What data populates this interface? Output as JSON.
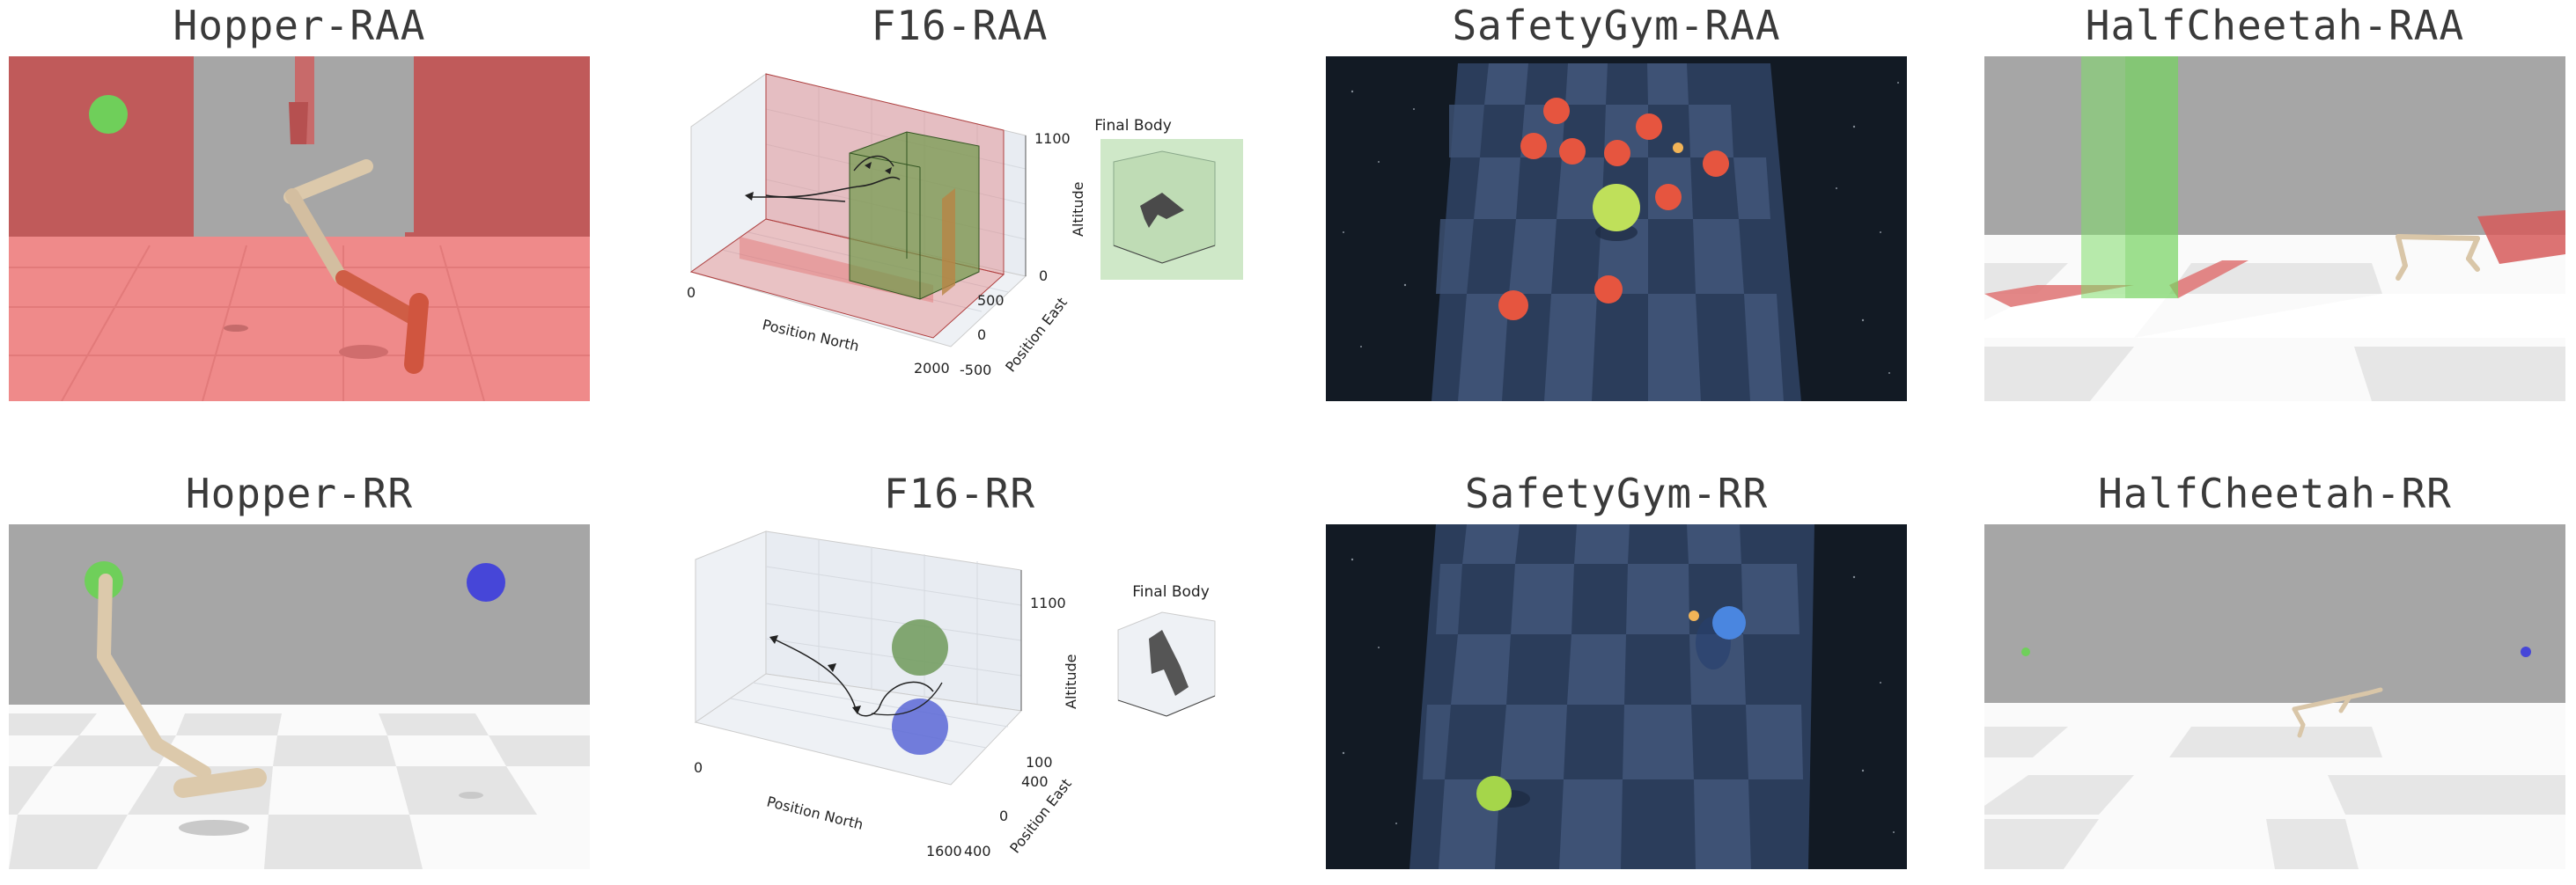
{
  "panels": [
    {
      "id": "hopper-raa",
      "title": "Hopper-RAA"
    },
    {
      "id": "f16-raa",
      "title": "F16-RAA"
    },
    {
      "id": "safetygym-raa",
      "title": "SafetyGym-RAA"
    },
    {
      "id": "halfcheetah-raa",
      "title": "HalfCheetah-RAA"
    },
    {
      "id": "hopper-rr",
      "title": "Hopper-RR"
    },
    {
      "id": "f16-rr",
      "title": "F16-RR"
    },
    {
      "id": "safetygym-rr",
      "title": "SafetyGym-RR"
    },
    {
      "id": "halfcheetah-rr",
      "title": "HalfCheetah-RR"
    }
  ],
  "f16_raa": {
    "zlabel": "Altitude",
    "xlabel": "Position North",
    "ylabel": "Position East",
    "x_ticks": [
      "0",
      "2000"
    ],
    "y_ticks": [
      "500",
      "0",
      "-500"
    ],
    "z_ticks": [
      "1100",
      "0"
    ],
    "inset_title": "Final Body"
  },
  "f16_rr": {
    "zlabel": "Altitude",
    "xlabel": "Position North",
    "ylabel": "Position East",
    "x_ticks": [
      "0",
      "1600"
    ],
    "y_ticks": [
      "400",
      "400",
      "0"
    ],
    "z_ticks": [
      "1100",
      "100"
    ],
    "inset_title": "Final Body"
  },
  "colors": {
    "unsafe_red": "#e06a6a",
    "target_green": "#7fbf5f",
    "goal_blue": "#4a5fd6",
    "floor_navy": "#2c3f5e",
    "sky_gray": "#a7a7a7",
    "robot_beige": "#d9c6a8"
  }
}
